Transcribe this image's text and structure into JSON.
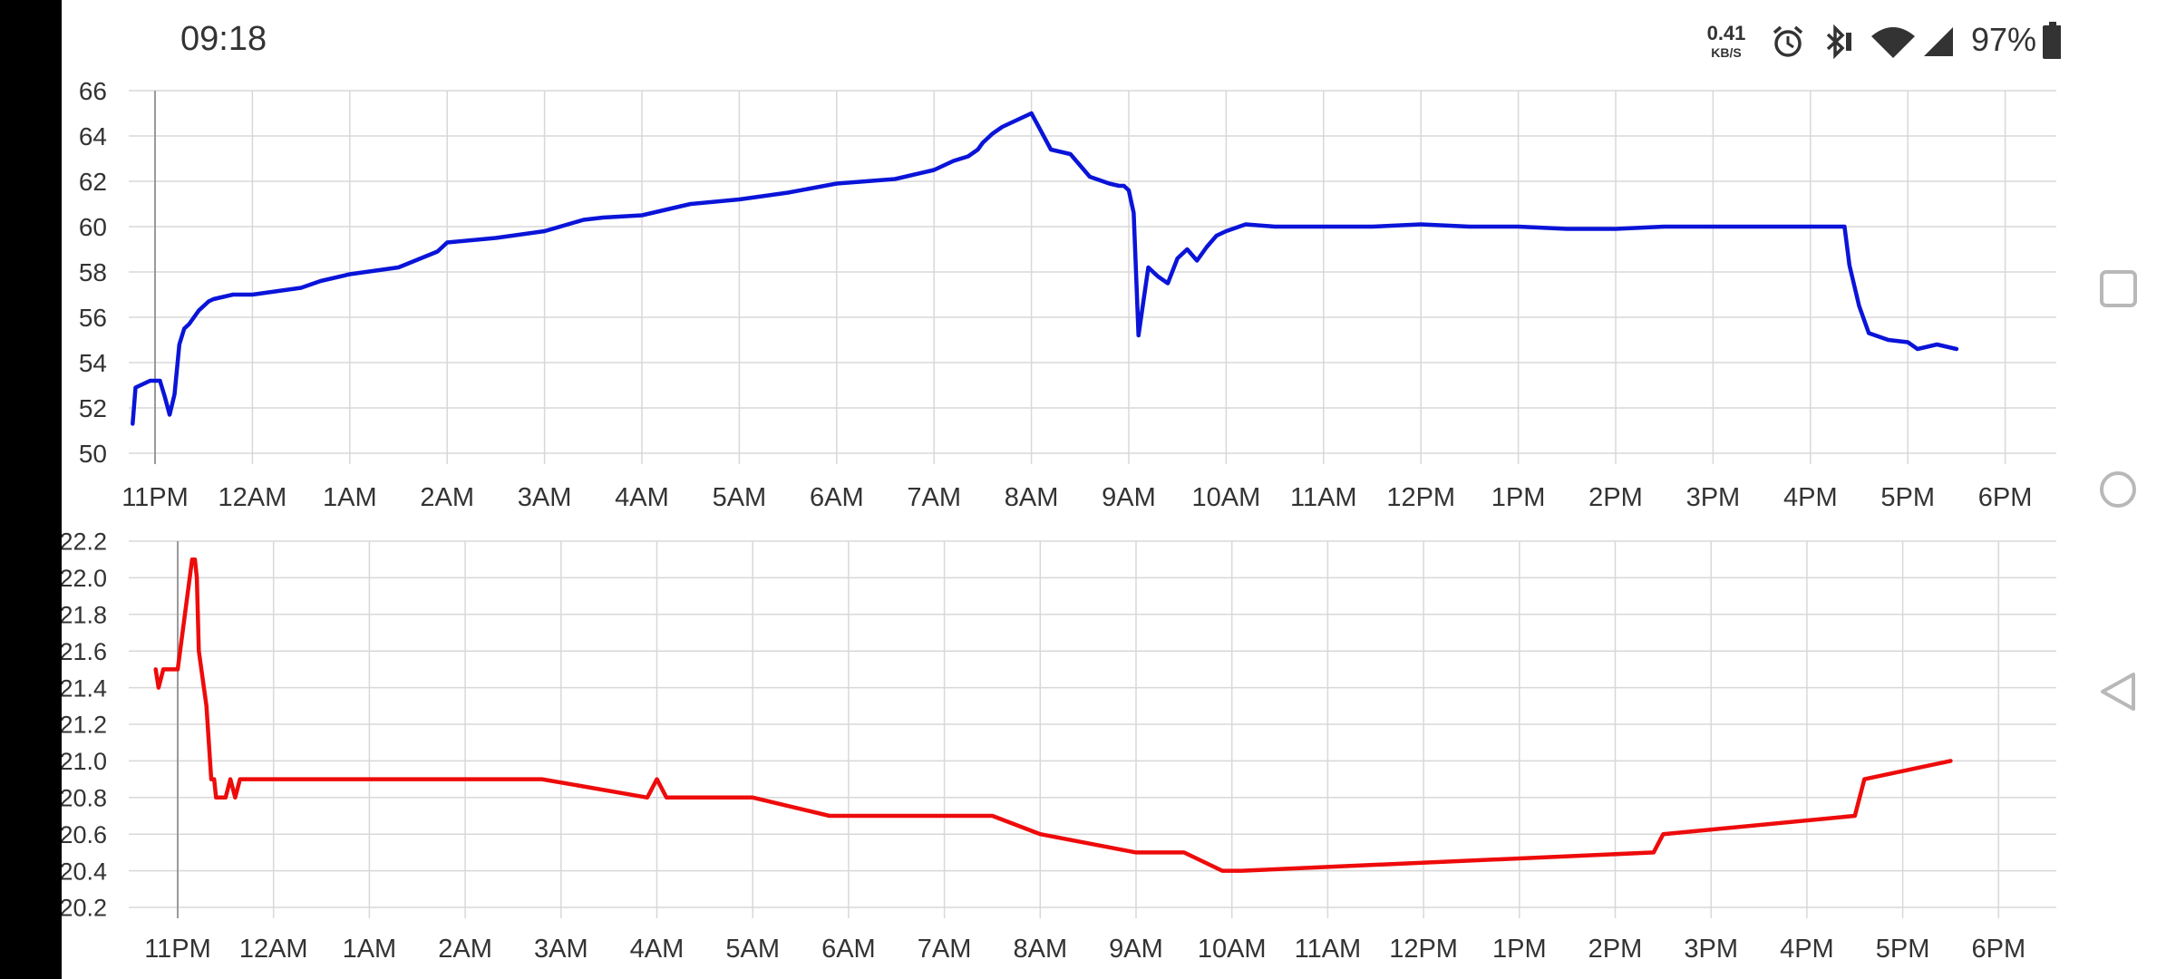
{
  "status_bar": {
    "time": "09:18",
    "net_speed_value": "0.41",
    "net_speed_unit": "KB/S",
    "battery": "97%",
    "icons": [
      "alarm-icon",
      "bluetooth-icon",
      "wifi-icon",
      "signal-icon",
      "battery-icon"
    ]
  },
  "nav_bar": {
    "buttons": [
      "recents-square-icon",
      "home-circle-icon",
      "back-triangle-icon"
    ]
  },
  "colors": {
    "top_series": "#0a14d8",
    "bottom_series": "#ee0b0b",
    "grid": "#d8d8d8",
    "axis_text": "#333333"
  },
  "chart_data": [
    {
      "type": "line",
      "ylim": [
        50,
        66
      ],
      "yticks": [
        "50",
        "52",
        "54",
        "56",
        "58",
        "60",
        "62",
        "64",
        "66"
      ],
      "xticks": [
        "11PM",
        "12AM",
        "1AM",
        "2AM",
        "3AM",
        "4AM",
        "5AM",
        "6AM",
        "7AM",
        "8AM",
        "9AM",
        "10AM",
        "11AM",
        "12PM",
        "1PM",
        "2PM",
        "3PM",
        "4PM",
        "5PM",
        "6PM"
      ],
      "grid": true,
      "x_unit": "hours after 11PM",
      "series": [
        {
          "x": [
            -0.23,
            -0.2,
            -0.15,
            -0.05,
            0.05,
            0.1,
            0.15,
            0.2,
            0.25,
            0.3,
            0.35,
            0.45,
            0.55,
            0.6,
            0.7,
            0.8,
            1.0,
            1.5,
            1.7,
            2.0,
            2.5,
            2.9,
            3.0,
            3.5,
            4.0,
            4.4,
            4.6,
            5.0,
            5.5,
            6.0,
            6.5,
            7.0,
            7.3,
            7.6,
            8.0,
            8.2,
            8.35,
            8.45,
            8.5,
            8.6,
            8.7,
            8.8,
            9.0,
            9.2,
            9.4,
            9.6,
            9.8,
            9.9,
            9.95,
            10.0,
            10.05,
            10.1,
            10.2,
            10.3,
            10.4,
            10.5,
            10.6,
            10.7,
            10.8,
            10.9,
            11.0,
            11.2,
            11.5,
            12.0,
            12.5,
            13.0,
            13.5,
            14.0,
            14.5,
            15.0,
            15.5,
            16.0,
            16.5,
            17.0,
            17.2,
            17.3,
            17.35,
            17.4,
            17.5,
            17.6,
            17.8,
            18.0,
            18.1,
            18.3,
            18.5
          ],
          "y": [
            51.3,
            52.9,
            53.0,
            53.2,
            53.2,
            52.5,
            51.7,
            52.6,
            54.8,
            55.5,
            55.7,
            56.3,
            56.7,
            56.8,
            56.9,
            57.0,
            57.0,
            57.3,
            57.6,
            57.9,
            58.2,
            58.9,
            59.3,
            59.5,
            59.8,
            60.3,
            60.4,
            60.5,
            61.0,
            61.2,
            61.5,
            61.9,
            62.0,
            62.1,
            62.5,
            62.9,
            63.1,
            63.4,
            63.7,
            64.1,
            64.4,
            64.6,
            65.0,
            63.4,
            63.2,
            62.2,
            61.9,
            61.8,
            61.8,
            61.6,
            60.6,
            55.2,
            58.2,
            57.8,
            57.5,
            58.6,
            59.0,
            58.5,
            59.1,
            59.6,
            59.8,
            60.1,
            60.0,
            60.0,
            60.0,
            60.1,
            60.0,
            60.0,
            59.9,
            59.9,
            60.0,
            60.0,
            60.0,
            60.0,
            60.0,
            60.0,
            60.0,
            58.3,
            56.5,
            55.3,
            55.0,
            54.9,
            54.6,
            54.8,
            54.6
          ]
        }
      ]
    },
    {
      "type": "line",
      "ylim": [
        20.2,
        22.2
      ],
      "yticks": [
        "20.2",
        "20.4",
        "20.6",
        "20.8",
        "21.0",
        "21.2",
        "21.4",
        "21.6",
        "21.8",
        "22.0",
        "22.2"
      ],
      "xticks": [
        "11PM",
        "12AM",
        "1AM",
        "2AM",
        "3AM",
        "4AM",
        "5AM",
        "6AM",
        "7AM",
        "8AM",
        "9AM",
        "10AM",
        "11AM",
        "12PM",
        "1PM",
        "2PM",
        "3PM",
        "4PM",
        "5PM",
        "6PM"
      ],
      "grid": true,
      "x_unit": "hours after 11PM",
      "series": [
        {
          "x": [
            -0.23,
            -0.2,
            -0.15,
            -0.1,
            0.0,
            0.1,
            0.15,
            0.18,
            0.2,
            0.22,
            0.3,
            0.35,
            0.38,
            0.4,
            0.45,
            0.5,
            0.55,
            0.6,
            0.65,
            0.7,
            3.8,
            4.9,
            5.0,
            5.1,
            6.0,
            6.8,
            8.5,
            9.0,
            10.0,
            10.5,
            10.9,
            11.0,
            11.1,
            15.4,
            15.5,
            17.5,
            17.6,
            18.5
          ],
          "y": [
            21.5,
            21.4,
            21.5,
            21.5,
            21.5,
            21.9,
            22.1,
            22.1,
            22.0,
            21.6,
            21.3,
            20.9,
            20.9,
            20.8,
            20.8,
            20.8,
            20.9,
            20.8,
            20.9,
            20.9,
            20.9,
            20.8,
            20.9,
            20.8,
            20.8,
            20.7,
            20.7,
            20.6,
            20.5,
            20.5,
            20.4,
            20.4,
            20.4,
            20.5,
            20.6,
            20.7,
            20.9,
            21.0
          ]
        }
      ]
    }
  ]
}
